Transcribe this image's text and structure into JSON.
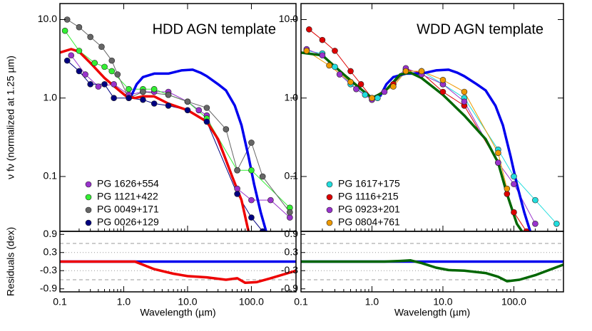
{
  "chart_data": [
    {
      "type": "line",
      "title": "HDD AGN template",
      "ylabel": "ν fν (normalized at 1.25 µm)",
      "xlabel": "Wavelength (µm)",
      "log_x": true,
      "log_y": true,
      "legend": "lower left",
      "xlim": [
        0.1,
        500
      ],
      "xticks": [
        0.1,
        {
          "value": 1,
          "label": "1.0"
        },
        {
          "value": 10,
          "label": "10.0"
        },
        {
          "value": 100,
          "label": "100.0"
        }
      ],
      "ylim": [
        0.02,
        16
      ],
      "yticks": [
        0.1,
        {
          "value": 1,
          "label": "1.0"
        },
        {
          "value": 10,
          "label": "10.0"
        }
      ],
      "templates": [
        {
          "color": "#0000ee",
          "x": [
            1.3,
            1.6,
            2,
            3,
            5,
            8,
            12,
            16,
            20,
            30,
            40,
            55,
            70,
            90,
            110,
            140,
            170
          ],
          "values": [
            1.05,
            1.5,
            1.85,
            2.05,
            2.05,
            2.25,
            2.3,
            2.1,
            1.9,
            1.5,
            1.25,
            0.8,
            0.45,
            0.18,
            0.08,
            0.035,
            0.02
          ]
        },
        {
          "color": "#ee0000",
          "x": [
            0.1,
            0.15,
            0.2,
            0.3,
            0.5,
            0.8,
            1.1,
            1.5,
            2,
            3,
            5,
            10,
            20,
            30,
            50,
            70,
            90
          ],
          "values": [
            3.8,
            4.2,
            3.9,
            2.8,
            1.8,
            1.3,
            1.05,
            1.0,
            1.05,
            1.05,
            0.85,
            0.7,
            0.5,
            0.3,
            0.1,
            0.05,
            0.02
          ]
        }
      ],
      "series": [
        {
          "name": "PG 1626+554",
          "color": "#9933cc",
          "x": [
            0.15,
            0.25,
            0.4,
            0.7,
            1.2,
            2,
            3,
            5,
            10,
            15,
            20,
            60,
            100,
            200,
            400
          ],
          "values": [
            3.5,
            2.0,
            1.4,
            1.5,
            1.1,
            1.2,
            1.2,
            1.2,
            0.9,
            0.7,
            0.6,
            0.07,
            0.05,
            0.05,
            0.03
          ]
        },
        {
          "name": "PG 1121+422",
          "color": "#33ee33",
          "x": [
            0.12,
            0.2,
            0.35,
            0.5,
            0.65,
            1.2,
            2,
            3,
            5,
            10,
            20,
            60,
            100,
            400
          ],
          "values": [
            7.2,
            4.0,
            2.8,
            2.5,
            2.2,
            1.3,
            1.3,
            1.3,
            1.1,
            0.9,
            0.55,
            0.12,
            0.12,
            0.04
          ]
        },
        {
          "name": "PG 0049+171",
          "color": "#666666",
          "x": [
            0.13,
            0.2,
            0.3,
            0.45,
            0.65,
            0.8,
            1.2,
            2,
            5,
            10,
            20,
            40,
            60,
            100,
            150,
            400
          ],
          "values": [
            10,
            8,
            6,
            4.5,
            3,
            2,
            1.0,
            1.2,
            1.1,
            0.9,
            0.75,
            0.4,
            0.12,
            0.27,
            0.1,
            0.035
          ]
        },
        {
          "name": "PG 0026+129",
          "color": "#000080",
          "x": [
            0.13,
            0.2,
            0.3,
            0.5,
            0.7,
            1.2,
            2,
            3,
            5,
            10,
            20,
            60,
            100,
            150
          ],
          "values": [
            3.0,
            2.2,
            1.5,
            1.5,
            1.0,
            1.0,
            0.95,
            0.85,
            0.8,
            0.7,
            0.5,
            0.06,
            0.03,
            0.02
          ]
        }
      ],
      "residuals": {
        "ylabel": "Residuals (dex)",
        "ylim": [
          -1.0,
          1.0
        ],
        "yticks": [
          -0.9,
          -0.3,
          0.3,
          0.9
        ],
        "dashed": [
          -0.6,
          0.6
        ],
        "dotted": [
          -0.3,
          0.3
        ],
        "series": [
          {
            "color": "#0000ee",
            "x": [
              0.1,
              500
            ],
            "values": [
              0,
              0
            ]
          },
          {
            "color": "#ee0000",
            "x": [
              0.1,
              1.5,
              3,
              6,
              10,
              20,
              40,
              60,
              80,
              120,
              200,
              500
            ],
            "values": [
              0,
              0,
              -0.25,
              -0.4,
              -0.48,
              -0.52,
              -0.6,
              -0.55,
              -0.7,
              -0.68,
              -0.55,
              -0.3
            ]
          }
        ]
      }
    },
    {
      "type": "line",
      "title": "WDD AGN template",
      "xlabel": "Wavelength (µm)",
      "log_x": true,
      "log_y": true,
      "legend": "lower left",
      "xlim": [
        0.1,
        500
      ],
      "xticks": [
        0.1,
        {
          "value": 1,
          "label": "1.0"
        },
        {
          "value": 10,
          "label": "10.0"
        },
        {
          "value": 100,
          "label": "100.0"
        }
      ],
      "ylim": [
        0.02,
        16
      ],
      "yticks": [
        0.1,
        {
          "value": 1,
          "label": "1.0"
        },
        {
          "value": 10,
          "label": "10.0"
        }
      ],
      "templates": [
        {
          "color": "#0000ee",
          "x": [
            1.3,
            1.6,
            2,
            3,
            5,
            8,
            12,
            16,
            20,
            30,
            40,
            55,
            70,
            90,
            110,
            140,
            170
          ],
          "values": [
            1.05,
            1.5,
            1.85,
            2.05,
            2.05,
            2.25,
            2.3,
            2.1,
            1.9,
            1.5,
            1.25,
            0.8,
            0.45,
            0.18,
            0.08,
            0.035,
            0.02
          ]
        },
        {
          "color": "#006600",
          "x": [
            0.1,
            0.2,
            0.4,
            0.7,
            1.0,
            1.5,
            2.5,
            3.5,
            5,
            10,
            20,
            40,
            60,
            80,
            110,
            130
          ],
          "values": [
            3.8,
            3.5,
            2.0,
            1.3,
            1.0,
            1.2,
            2.0,
            2.1,
            1.8,
            1.1,
            0.6,
            0.3,
            0.15,
            0.06,
            0.025,
            0.02
          ]
        }
      ],
      "series": [
        {
          "name": "PG 1617+175",
          "color": "#22dddd",
          "x": [
            0.12,
            0.2,
            0.3,
            0.5,
            0.8,
            1.2,
            2,
            3,
            5,
            10,
            20,
            60,
            100,
            200,
            400
          ],
          "values": [
            4.0,
            3.7,
            2.5,
            1.5,
            1.1,
            1.0,
            1.5,
            2.2,
            2.2,
            1.5,
            1.0,
            0.22,
            0.1,
            0.05,
            0.025
          ]
        },
        {
          "name": "PG 1116+215",
          "color": "#dd0000",
          "x": [
            0.13,
            0.2,
            0.3,
            0.5,
            0.7,
            1.0,
            2,
            3,
            5,
            10,
            20,
            60,
            80,
            100,
            150
          ],
          "values": [
            7.5,
            5.5,
            4.0,
            2.2,
            1.5,
            1.0,
            1.5,
            2.3,
            2.1,
            1.2,
            0.8,
            0.15,
            0.06,
            0.035,
            0.02
          ]
        },
        {
          "name": "PG 0923+201",
          "color": "#9933cc",
          "x": [
            0.12,
            0.2,
            0.35,
            0.6,
            1.0,
            1.5,
            3,
            5,
            10,
            20,
            60,
            100,
            200
          ],
          "values": [
            4.2,
            3.5,
            2.0,
            1.3,
            0.95,
            1.2,
            2.4,
            2.0,
            1.5,
            0.9,
            0.15,
            0.08,
            0.025
          ]
        },
        {
          "name": "PG 0804+761",
          "color": "#ee9900",
          "x": [
            0.12,
            0.25,
            0.5,
            1.0,
            2,
            3,
            5,
            10,
            20,
            60,
            80
          ],
          "values": [
            4.0,
            2.6,
            1.6,
            1.0,
            1.4,
            2.2,
            2.2,
            1.7,
            1.2,
            0.2,
            0.07
          ]
        }
      ],
      "residuals": {
        "ylim": [
          -1.0,
          1.0
        ],
        "yticks": [
          -0.9,
          -0.3,
          0.3,
          0.9
        ],
        "dashed": [
          -0.6,
          0.6
        ],
        "dotted": [
          -0.3,
          0.3
        ],
        "series": [
          {
            "color": "#0000ee",
            "x": [
              0.1,
              500
            ],
            "values": [
              0,
              0
            ]
          },
          {
            "color": "#006600",
            "x": [
              0.1,
              1.5,
              2.5,
              3.5,
              5,
              8,
              12,
              20,
              40,
              60,
              80,
              120,
              200,
              500
            ],
            "values": [
              0,
              0,
              0.02,
              0.04,
              -0.05,
              -0.2,
              -0.28,
              -0.3,
              -0.38,
              -0.5,
              -0.65,
              -0.6,
              -0.45,
              -0.1
            ]
          }
        ]
      }
    }
  ]
}
